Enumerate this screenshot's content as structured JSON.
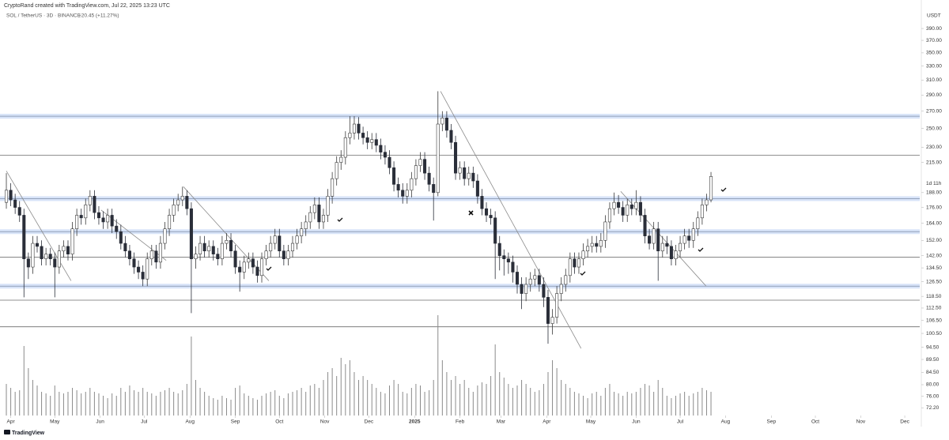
{
  "chart_data": {
    "type": "candlestick",
    "title": "CryptoRand created with TradingView.com, Jul 22, 2025 13:23 UTC",
    "subtitle": "SOL / TetherUS · 3D · BINANCE",
    "change": "+20.45 (+11.27%)",
    "unit": "USDT",
    "countdown": "1d 11h",
    "brand": "TradingView",
    "log_scale": true,
    "grid": false,
    "up_color": "#ffffff",
    "down_color": "#2a2e39",
    "outline_color": "#3a3a3a",
    "volume_color": "#8a8a8a",
    "xlim": [
      -1.44,
      207.4
    ],
    "xticks": [
      {
        "value": 1,
        "label": "Apr"
      },
      {
        "value": 11,
        "label": "May"
      },
      {
        "value": 21.3,
        "label": "Jun"
      },
      {
        "value": 31.3,
        "label": "Jul"
      },
      {
        "value": 41.7,
        "label": "Aug"
      },
      {
        "value": 52,
        "label": "Sep"
      },
      {
        "value": 62,
        "label": "Oct"
      },
      {
        "value": 72.3,
        "label": "Nov"
      },
      {
        "value": 82.3,
        "label": "Dec"
      },
      {
        "value": 92.7,
        "label": "2025"
      },
      {
        "value": 103,
        "label": "Feb"
      },
      {
        "value": 112.3,
        "label": "Mar"
      },
      {
        "value": 122.7,
        "label": "Apr"
      },
      {
        "value": 132.7,
        "label": "May"
      },
      {
        "value": 143,
        "label": "Jun"
      },
      {
        "value": 153,
        "label": "Jul"
      },
      {
        "value": 163.3,
        "label": "Aug"
      },
      {
        "value": 173.7,
        "label": "Sep"
      },
      {
        "value": 183.7,
        "label": "Oct"
      },
      {
        "value": 194,
        "label": "Nov"
      },
      {
        "value": 204,
        "label": "Dec"
      }
    ],
    "ylim": [
      70,
      420
    ],
    "yticks": [
      {
        "value": 390,
        "label": "390.00"
      },
      {
        "value": 370,
        "label": "370.00"
      },
      {
        "value": 350,
        "label": "350.00"
      },
      {
        "value": 330,
        "label": "330.00"
      },
      {
        "value": 310,
        "label": "310.00"
      },
      {
        "value": 290,
        "label": "290.00"
      },
      {
        "value": 270,
        "label": "270.00"
      },
      {
        "value": 250,
        "label": "250.00"
      },
      {
        "value": 230,
        "label": "230.00"
      },
      {
        "value": 215,
        "label": "215.00"
      },
      {
        "value": 188,
        "label": "188.00"
      },
      {
        "value": 176,
        "label": "176.00"
      },
      {
        "value": 164,
        "label": "164.00"
      },
      {
        "value": 152,
        "label": "152.00"
      },
      {
        "value": 142,
        "label": "142.00"
      },
      {
        "value": 134.5,
        "label": "134.50"
      },
      {
        "value": 126.5,
        "label": "126.50"
      },
      {
        "value": 118.5,
        "label": "118.50"
      },
      {
        "value": 112.5,
        "label": "112.50"
      },
      {
        "value": 106.5,
        "label": "106.50"
      },
      {
        "value": 100.5,
        "label": "100.50"
      },
      {
        "value": 94.5,
        "label": "94.50"
      },
      {
        "value": 89.5,
        "label": "89.50"
      },
      {
        "value": 84.5,
        "label": "84.50"
      },
      {
        "value": 80,
        "label": "80.00"
      },
      {
        "value": 76,
        "label": "76.00"
      },
      {
        "value": 72.2,
        "label": "72.20"
      }
    ],
    "open": [
      180,
      190,
      182,
      176,
      170,
      140,
      135,
      150,
      148,
      140,
      143,
      140,
      135,
      145,
      148,
      143,
      160,
      170,
      168,
      178,
      185,
      172,
      168,
      165,
      170,
      162,
      158,
      150,
      145,
      140,
      135,
      132,
      128,
      140,
      145,
      138,
      150,
      160,
      170,
      178,
      182,
      185,
      175,
      140,
      143,
      150,
      145,
      148,
      143,
      140,
      150,
      152,
      145,
      135,
      132,
      138,
      140,
      135,
      130,
      140,
      145,
      150,
      155,
      145,
      140,
      145,
      150,
      155,
      160,
      165,
      172,
      178,
      165,
      170,
      185,
      200,
      215,
      220,
      240,
      245,
      255,
      245,
      240,
      235,
      238,
      232,
      225,
      220,
      210,
      195,
      190,
      185,
      190,
      200,
      212,
      218,
      205,
      195,
      188,
      255,
      262,
      248,
      235,
      205,
      210,
      200,
      205,
      198,
      185,
      175,
      170,
      168,
      150,
      142,
      140,
      138,
      132,
      125,
      120,
      125,
      128,
      130,
      125,
      118,
      105,
      108,
      120,
      125,
      130,
      140,
      135,
      140,
      145,
      148,
      150,
      148,
      152,
      165,
      175,
      180,
      176,
      170,
      178,
      175,
      180,
      170,
      155,
      150,
      160,
      145,
      150,
      148,
      140,
      145,
      150,
      155,
      152,
      160,
      168,
      178,
      182
    ],
    "high": [
      205,
      196,
      187,
      181,
      175,
      144,
      155,
      155,
      152,
      147,
      147,
      144,
      149,
      152,
      152,
      165,
      175,
      175,
      183,
      190,
      190,
      177,
      173,
      175,
      175,
      167,
      163,
      155,
      149,
      144,
      139,
      136,
      144,
      149,
      149,
      155,
      165,
      175,
      183,
      187,
      193,
      190,
      180,
      148,
      155,
      155,
      152,
      152,
      147,
      155,
      157,
      157,
      149,
      139,
      142,
      144,
      144,
      139,
      144,
      149,
      155,
      160,
      160,
      149,
      149,
      155,
      160,
      165,
      170,
      177,
      184,
      184,
      175,
      191,
      206,
      221,
      227,
      247,
      264,
      264,
      263,
      252,
      247,
      245,
      245,
      239,
      232,
      227,
      216,
      201,
      196,
      196,
      206,
      218,
      225,
      225,
      211,
      201,
      295,
      270,
      270,
      255,
      242,
      216,
      216,
      211,
      211,
      204,
      191,
      180,
      175,
      173,
      155,
      146,
      144,
      142,
      136,
      129,
      129,
      132,
      134,
      134,
      129,
      122,
      112,
      124,
      129,
      134,
      144,
      144,
      144,
      150,
      153,
      155,
      155,
      157,
      170,
      180,
      188,
      186,
      181,
      183,
      183,
      190,
      185,
      175,
      160,
      165,
      165,
      155,
      155,
      152,
      149,
      155,
      160,
      160,
      165,
      173,
      183,
      187,
      206
    ],
    "low": [
      175,
      177,
      171,
      165,
      118,
      128,
      131,
      144,
      136,
      136,
      136,
      118,
      131,
      141,
      139,
      139,
      155,
      163,
      163,
      173,
      167,
      163,
      160,
      160,
      157,
      153,
      146,
      141,
      136,
      131,
      128,
      124,
      124,
      136,
      134,
      134,
      146,
      155,
      165,
      173,
      177,
      170,
      110,
      134,
      139,
      141,
      141,
      139,
      136,
      136,
      146,
      141,
      131,
      121,
      128,
      134,
      131,
      126,
      126,
      136,
      141,
      146,
      141,
      136,
      136,
      141,
      146,
      150,
      155,
      160,
      167,
      160,
      160,
      165,
      179,
      194,
      208,
      213,
      233,
      238,
      238,
      233,
      228,
      228,
      225,
      218,
      213,
      204,
      189,
      184,
      179,
      179,
      184,
      194,
      206,
      199,
      189,
      166,
      185,
      247,
      240,
      228,
      199,
      199,
      194,
      194,
      192,
      179,
      170,
      165,
      163,
      128,
      133,
      130,
      131,
      126,
      120,
      112,
      116,
      121,
      124,
      121,
      113,
      96,
      100,
      105,
      116,
      121,
      126,
      131,
      131,
      136,
      141,
      144,
      144,
      144,
      147,
      160,
      170,
      171,
      165,
      165,
      170,
      170,
      165,
      150,
      146,
      146,
      127,
      141,
      143,
      136,
      136,
      141,
      146,
      147,
      147,
      155,
      163,
      173,
      180
    ],
    "close": [
      190,
      182,
      176,
      170,
      140,
      135,
      150,
      148,
      140,
      143,
      140,
      135,
      145,
      148,
      143,
      160,
      170,
      168,
      178,
      185,
      172,
      168,
      165,
      170,
      162,
      158,
      150,
      145,
      140,
      135,
      132,
      128,
      140,
      145,
      138,
      150,
      160,
      170,
      178,
      182,
      185,
      175,
      140,
      143,
      150,
      145,
      148,
      143,
      140,
      150,
      152,
      145,
      135,
      132,
      138,
      140,
      135,
      130,
      140,
      145,
      150,
      155,
      145,
      140,
      145,
      150,
      155,
      160,
      165,
      172,
      178,
      165,
      170,
      185,
      200,
      215,
      220,
      240,
      245,
      255,
      245,
      240,
      235,
      238,
      232,
      225,
      220,
      210,
      195,
      190,
      185,
      190,
      200,
      212,
      218,
      205,
      195,
      188,
      255,
      262,
      248,
      235,
      205,
      210,
      200,
      205,
      198,
      185,
      175,
      170,
      168,
      150,
      142,
      140,
      138,
      132,
      125,
      120,
      125,
      128,
      130,
      125,
      118,
      105,
      108,
      120,
      125,
      130,
      140,
      135,
      140,
      145,
      148,
      150,
      148,
      152,
      165,
      175,
      180,
      176,
      170,
      178,
      175,
      180,
      170,
      155,
      150,
      160,
      145,
      150,
      148,
      140,
      145,
      150,
      155,
      152,
      160,
      168,
      178,
      182,
      202
    ],
    "volume": [
      40,
      35,
      30,
      32,
      88,
      60,
      45,
      38,
      30,
      28,
      25,
      38,
      30,
      28,
      30,
      35,
      32,
      28,
      30,
      35,
      30,
      28,
      25,
      22,
      28,
      25,
      35,
      30,
      38,
      32,
      30,
      35,
      30,
      28,
      25,
      30,
      32,
      35,
      30,
      28,
      32,
      40,
      100,
      45,
      35,
      30,
      25,
      22,
      20,
      25,
      22,
      20,
      35,
      38,
      28,
      25,
      22,
      20,
      25,
      28,
      30,
      32,
      25,
      22,
      28,
      30,
      32,
      35,
      30,
      38,
      40,
      35,
      45,
      55,
      60,
      50,
      73,
      65,
      70,
      55,
      45,
      50,
      45,
      40,
      35,
      30,
      28,
      38,
      45,
      40,
      30,
      28,
      35,
      40,
      38,
      30,
      32,
      45,
      127,
      70,
      55,
      45,
      50,
      40,
      45,
      35,
      30,
      38,
      42,
      40,
      50,
      90,
      55,
      48,
      40,
      35,
      38,
      45,
      40,
      35,
      30,
      32,
      40,
      55,
      70,
      60,
      45,
      40,
      35,
      30,
      28,
      25,
      22,
      28,
      30,
      25,
      35,
      40,
      30,
      28,
      25,
      30,
      28,
      30,
      35,
      40,
      38,
      30,
      45,
      35,
      25,
      22,
      25,
      28,
      30,
      25,
      28,
      30,
      35,
      32,
      30
    ],
    "levels": [
      {
        "value": 264,
        "style": "band"
      },
      {
        "value": 183,
        "style": "band"
      },
      {
        "value": 158,
        "style": "band"
      },
      {
        "value": 124,
        "style": "band"
      },
      {
        "value": 222,
        "style": "line"
      },
      {
        "value": 141,
        "style": "line"
      },
      {
        "value": 116.5,
        "style": "line"
      },
      {
        "value": 103.5,
        "style": "line"
      }
    ],
    "trendlines": [
      {
        "x": [
          0,
          14.7
        ],
        "y": [
          207,
          127
        ]
      },
      {
        "x": [
          21.5,
          36.3
        ],
        "y": [
          174,
          139
        ]
      },
      {
        "x": [
          40.2,
          59.6
        ],
        "y": [
          193,
          127
        ]
      },
      {
        "x": [
          98.6,
          130.5
        ],
        "y": [
          295,
          94
        ]
      },
      {
        "x": [
          139.5,
          158.9
        ],
        "y": [
          189,
          124
        ]
      }
    ]
  }
}
